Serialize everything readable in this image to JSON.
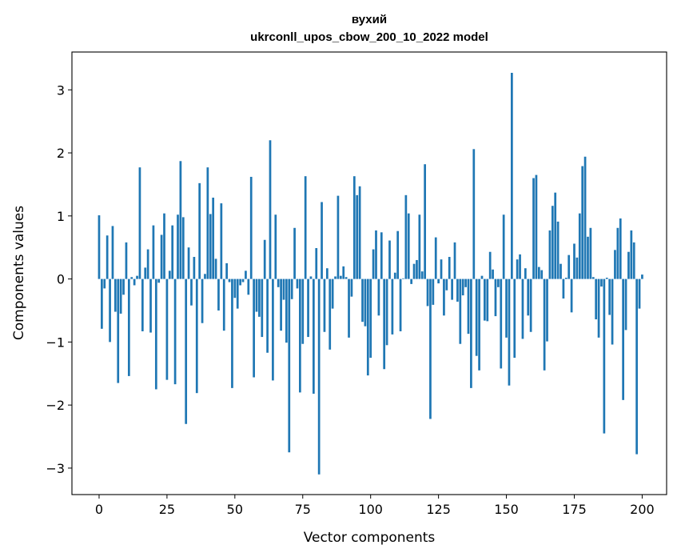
{
  "chart_data": {
    "type": "bar",
    "title_line1": "вухий",
    "title_line2": "ukrconll_upos_cbow_200_10_2022 model",
    "xlabel": "Vector components",
    "ylabel": "Components values",
    "xlim": [
      -10,
      209
    ],
    "ylim": [
      -3.42,
      3.6
    ],
    "xticks": [
      0,
      25,
      50,
      75,
      100,
      125,
      150,
      175,
      200
    ],
    "yticks": [
      -3,
      -2,
      -1,
      0,
      1,
      2,
      3
    ],
    "ytick_labels": [
      "−3",
      "−2",
      "−1",
      "0",
      "1",
      "2",
      "3"
    ],
    "bar_color": "#1f77b4",
    "values": [
      1.01,
      -0.79,
      -0.15,
      0.69,
      -1.0,
      0.84,
      -0.52,
      -1.65,
      -0.55,
      -0.25,
      0.58,
      -1.54,
      0.03,
      -0.1,
      0.05,
      1.77,
      -0.83,
      0.18,
      0.47,
      -0.85,
      0.85,
      -1.75,
      -0.06,
      0.7,
      1.04,
      -1.6,
      0.13,
      0.85,
      -1.67,
      1.02,
      1.87,
      0.98,
      -2.3,
      0.5,
      -0.42,
      0.35,
      -1.81,
      1.52,
      -0.7,
      0.08,
      1.77,
      1.03,
      1.29,
      0.32,
      -0.5,
      1.2,
      -0.82,
      0.25,
      -0.05,
      -1.73,
      -0.3,
      -0.47,
      -0.1,
      -0.05,
      0.13,
      -0.25,
      1.62,
      -1.56,
      -0.52,
      -0.6,
      -0.92,
      0.62,
      -1.17,
      2.2,
      -1.61,
      1.02,
      -0.13,
      -0.82,
      -0.33,
      -1.01,
      -2.75,
      -0.32,
      0.81,
      -0.15,
      -1.8,
      -1.03,
      1.63,
      -0.92,
      0.04,
      -1.82,
      0.49,
      -3.1,
      1.22,
      -0.84,
      0.17,
      -1.12,
      -0.47,
      0.04,
      1.32,
      0.05,
      0.2,
      0.03,
      -0.93,
      -0.28,
      1.63,
      1.33,
      1.47,
      -0.68,
      -0.75,
      -1.53,
      -1.25,
      0.47,
      0.77,
      -0.58,
      0.74,
      -1.43,
      -1.05,
      0.61,
      -0.88,
      0.1,
      0.76,
      -0.83,
      0.01,
      1.33,
      1.04,
      -0.08,
      0.24,
      0.3,
      1.02,
      0.12,
      1.82,
      -0.43,
      -2.22,
      -0.41,
      0.66,
      -0.07,
      0.31,
      -0.58,
      -0.18,
      0.35,
      -0.33,
      0.58,
      -0.36,
      -1.03,
      -0.26,
      -0.13,
      -0.87,
      -1.73,
      2.06,
      -1.22,
      -1.45,
      0.05,
      -0.66,
      -0.67,
      0.43,
      0.15,
      -0.59,
      -0.13,
      -1.42,
      1.02,
      -0.93,
      -1.69,
      3.27,
      -1.25,
      0.31,
      0.39,
      -0.95,
      0.17,
      -0.58,
      -0.84,
      1.6,
      1.65,
      0.19,
      0.14,
      -1.45,
      -0.99,
      0.77,
      1.16,
      1.37,
      0.91,
      0.24,
      -0.31,
      0.02,
      0.38,
      -0.53,
      0.56,
      0.34,
      1.04,
      1.79,
      1.94,
      0.67,
      0.81,
      0.03,
      -0.64,
      -0.93,
      -0.12,
      -2.45,
      0.02,
      -0.57,
      -1.04,
      0.46,
      0.81,
      0.96,
      -1.92,
      -0.81,
      0.43,
      0.77,
      0.58,
      -2.78,
      -0.47,
      0.07
    ]
  }
}
